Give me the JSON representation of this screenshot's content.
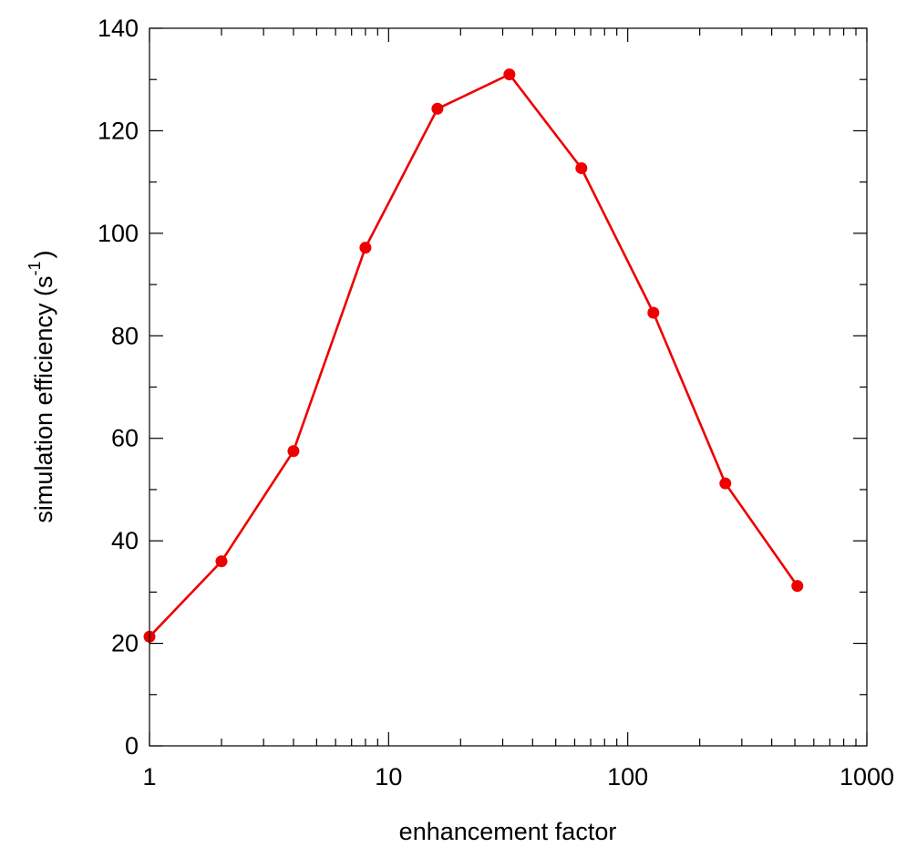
{
  "chart_data": {
    "type": "line",
    "title": "",
    "xlabel": "enhancement factor",
    "ylabel_main": "simulation efficiency  (s",
    "ylabel_sup": "-1",
    "ylabel_close": ")",
    "xscale": "log",
    "xlim": [
      1,
      1000
    ],
    "ylim": [
      0,
      140
    ],
    "xticks": [
      1,
      10,
      100,
      1000
    ],
    "xtick_labels": [
      "1",
      "10",
      "100",
      "1000"
    ],
    "yticks": [
      0,
      20,
      40,
      60,
      80,
      100,
      120,
      140
    ],
    "ytick_labels": [
      "0",
      "20",
      "40",
      "60",
      "80",
      "100",
      "120",
      "140"
    ],
    "grid": false,
    "legend": "none",
    "series": [
      {
        "color": "#ee0000",
        "marker": "circle",
        "x": [
          1,
          2,
          4,
          8,
          16,
          32,
          64,
          128,
          256,
          512
        ],
        "y": [
          21.3,
          36.0,
          57.5,
          97.2,
          124.3,
          131.0,
          112.7,
          84.5,
          51.2,
          31.2
        ]
      }
    ]
  }
}
